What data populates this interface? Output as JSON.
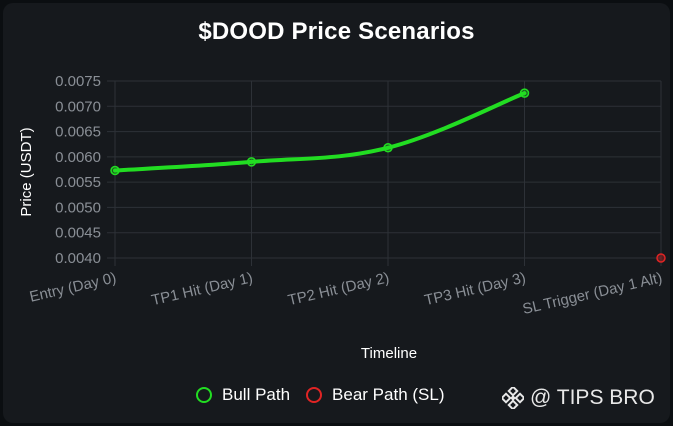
{
  "chart_data": {
    "type": "line",
    "title": "$DOOD Price Scenarios",
    "xlabel": "Timeline",
    "ylabel": "Price (USDT)",
    "categories": [
      "Entry (Day 0)",
      "TP1 Hit (Day 1)",
      "TP2 Hit (Day 2)",
      "TP3 Hit (Day 3)",
      "SL Trigger (Day 1 Alt)"
    ],
    "ylim": [
      0.004,
      0.0075
    ],
    "yticks": [
      "0.0075",
      "0.0070",
      "0.0065",
      "0.0060",
      "0.0055",
      "0.0050",
      "0.0045",
      "0.0040"
    ],
    "grid": true,
    "legend_position": "bottom",
    "series": [
      {
        "name": "Bull Path",
        "color": "#22dd22",
        "values": [
          0.00573,
          0.0059,
          0.00618,
          0.00726,
          null
        ]
      },
      {
        "name": "Bear Path (SL)",
        "color": "#e02424",
        "values": [
          null,
          null,
          null,
          null,
          0.004
        ]
      }
    ]
  },
  "watermark": {
    "text": "@ TIPS BRO",
    "icon": "binance-logo-icon"
  }
}
